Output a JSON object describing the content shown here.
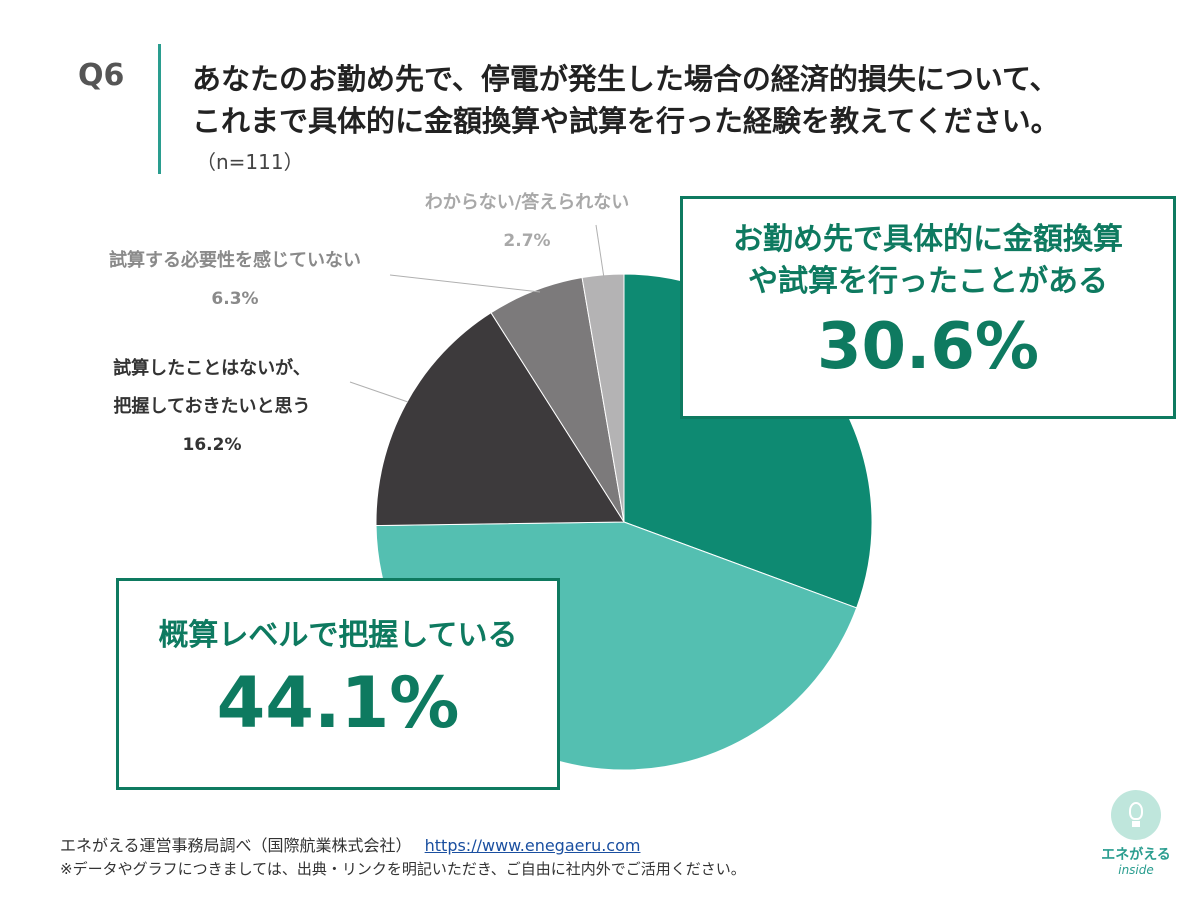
{
  "question": {
    "number": "Q6",
    "line1": "あなたのお勤め先で、停電が発生した場合の経済的損失について、",
    "line2": "これまで具体的に金額換算や試算を行った経験を教えてください。",
    "sample": "（n=111）"
  },
  "chart_data": {
    "type": "pie",
    "start_angle_deg": 0,
    "direction": "clockwise",
    "slices": [
      {
        "label": "お勤め先で具体的に金額換算や試算を行ったことがある",
        "value": 30.6,
        "value_label": "30.6%",
        "color": "#0e8a72"
      },
      {
        "label": "概算レベルで把握している",
        "value": 44.1,
        "value_label": "44.1%",
        "color": "#54bfb1"
      },
      {
        "label": "試算したことはないが、把握しておきたいと思う",
        "value": 16.2,
        "value_label": "16.2%",
        "color": "#3d3a3c"
      },
      {
        "label": "試算する必要性を感じていない",
        "value": 6.3,
        "value_label": "6.3%",
        "color": "#7c7a7b"
      },
      {
        "label": "わからない/答えられない",
        "value": 2.7,
        "value_label": "2.7%",
        "color": "#b4b3b4"
      }
    ]
  },
  "labels": {
    "slice1_line1": "お勤め先で具体的に金額換算",
    "slice1_line2": "や試算を行ったことがある",
    "slice2": "概算レベルで把握している",
    "slice3_line1": "試算したことはないが、",
    "slice3_line2": "把握しておきたいと思う",
    "slice4": "試算する必要性を感じていない",
    "slice5": "わからない/答えられない"
  },
  "footer": {
    "source": "エネがえる運営事務局調べ（国際航業株式会社）",
    "url": "https://www.enegaeru.com",
    "note": "※データやグラフにつきましては、出典・リンクを明記いただき、ご自由に社内外でご活用ください。"
  },
  "logo": {
    "name": "エネがえる",
    "sub": "inside"
  },
  "colors": {
    "accent": "#0e7a60",
    "bar": "#2a9d8f"
  }
}
